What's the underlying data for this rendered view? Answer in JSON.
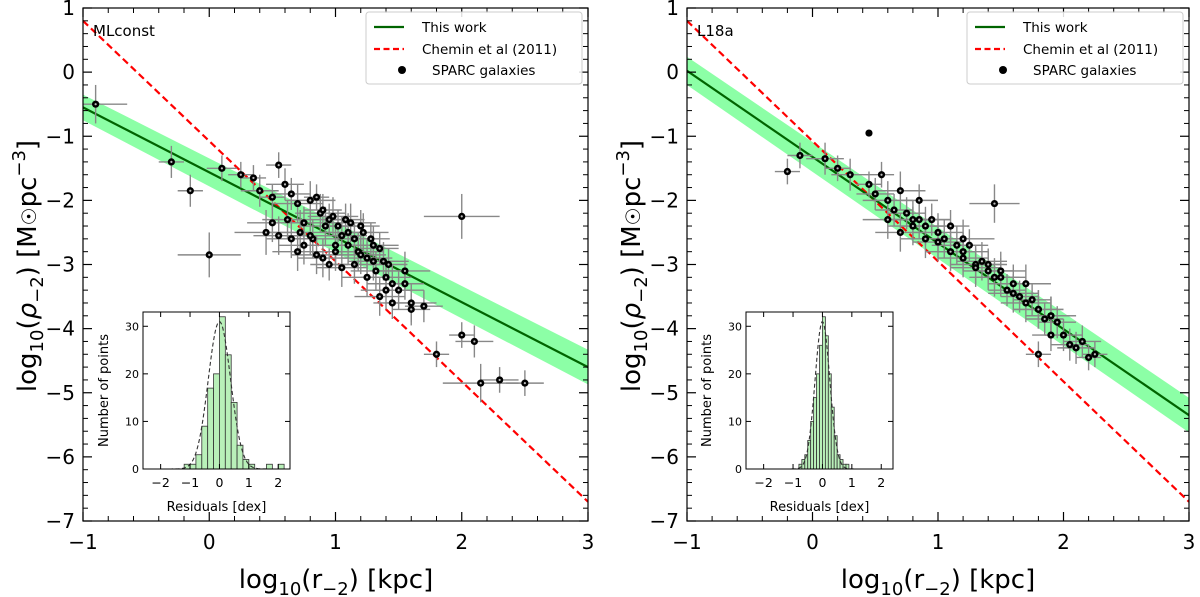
{
  "chart_data": [
    {
      "type": "scatter",
      "panel_label": "MLconst",
      "xlabel": "log10(r−2)  [kpc]",
      "ylabel": "log10(ρ−2)  [M☉pc−3]",
      "xlim": [
        -1,
        3
      ],
      "ylim": [
        -7,
        1
      ],
      "x_ticks": [
        "−1",
        "0",
        "1",
        "2",
        "3"
      ],
      "y_ticks": [
        "1",
        "0",
        "−1",
        "−2",
        "−3",
        "−4",
        "−5",
        "−6",
        "−7"
      ],
      "legend": [
        "This work",
        "Chemin et al (2011)",
        "SPARC galaxies"
      ],
      "legend_position": "top-right",
      "fit_line": {
        "name": "This work",
        "x": [
          -1,
          3
        ],
        "y": [
          -0.55,
          -4.6
        ],
        "band_halfwidth": [
          0.2,
          0.27
        ],
        "color": "#006400"
      },
      "reference_line": {
        "name": "Chemin et al (2011)",
        "x": [
          -1,
          3
        ],
        "y": [
          0.8,
          -6.7
        ],
        "color": "#ff0000"
      },
      "points": {
        "name": "SPARC galaxies",
        "x": [
          -0.9,
          -0.3,
          -0.15,
          0.1,
          0.25,
          0.35,
          0.4,
          0.5,
          0.55,
          0.6,
          0.62,
          0.65,
          0.7,
          0.72,
          0.75,
          0.8,
          0.82,
          0.85,
          0.88,
          0.9,
          0.92,
          0.95,
          0.98,
          1.0,
          1.02,
          1.05,
          1.08,
          1.1,
          1.12,
          1.15,
          1.18,
          1.2,
          1.22,
          1.25,
          1.28,
          1.3,
          1.32,
          1.35,
          1.38,
          1.4,
          1.42,
          1.45,
          1.5,
          1.55,
          1.6,
          0.0,
          0.5,
          0.65,
          0.75,
          0.85,
          0.95,
          1.05,
          1.15,
          1.25,
          1.35,
          1.45,
          1.55,
          1.6,
          1.7,
          1.8,
          2.0,
          2.1,
          2.15,
          2.3,
          2.5,
          0.45,
          0.55,
          0.7,
          0.8,
          0.9,
          1.0,
          1.1,
          1.2,
          1.3,
          1.4,
          2.0
        ],
        "y": [
          -0.5,
          -1.4,
          -1.85,
          -1.5,
          -1.6,
          -1.65,
          -1.85,
          -1.95,
          -1.45,
          -1.75,
          -2.3,
          -1.9,
          -2.05,
          -2.5,
          -2.35,
          -2.0,
          -2.6,
          -1.95,
          -2.2,
          -2.15,
          -2.4,
          -2.3,
          -2.25,
          -2.7,
          -2.4,
          -2.55,
          -2.3,
          -2.5,
          -2.35,
          -2.6,
          -2.8,
          -2.4,
          -2.5,
          -2.9,
          -2.6,
          -2.7,
          -3.1,
          -2.75,
          -2.95,
          -3.2,
          -3.0,
          -3.3,
          -3.4,
          -3.3,
          -3.6,
          -2.85,
          -2.35,
          -2.6,
          -2.7,
          -2.85,
          -3.0,
          -3.05,
          -3.0,
          -3.2,
          -3.5,
          -3.6,
          -3.1,
          -3.7,
          -3.65,
          -4.4,
          -4.1,
          -4.2,
          -4.85,
          -4.8,
          -4.85,
          -2.5,
          -2.55,
          -2.8,
          -2.55,
          -2.9,
          -2.8,
          -2.7,
          -2.85,
          -2.95,
          -3.4,
          -2.25
        ],
        "xerr": [
          0.25,
          0.1,
          0.1,
          0.12,
          0.1,
          0.1,
          0.15,
          0.1,
          0.1,
          0.15,
          0.2,
          0.15,
          0.2,
          0.25,
          0.15,
          0.2,
          0.2,
          0.1,
          0.2,
          0.15,
          0.2,
          0.15,
          0.2,
          0.2,
          0.15,
          0.2,
          0.15,
          0.2,
          0.2,
          0.15,
          0.2,
          0.15,
          0.2,
          0.2,
          0.15,
          0.2,
          0.2,
          0.15,
          0.2,
          0.2,
          0.15,
          0.2,
          0.2,
          0.15,
          0.2,
          0.25,
          0.2,
          0.2,
          0.2,
          0.2,
          0.15,
          0.2,
          0.2,
          0.2,
          0.2,
          0.15,
          0.2,
          0.15,
          0.15,
          0.1,
          0.1,
          0.15,
          0.3,
          0.15,
          0.15,
          0.25,
          0.2,
          0.2,
          0.2,
          0.2,
          0.2,
          0.2,
          0.2,
          0.2,
          0.2,
          0.3
        ],
        "yerr": [
          0.3,
          0.25,
          0.25,
          0.2,
          0.2,
          0.2,
          0.25,
          0.2,
          0.2,
          0.25,
          0.3,
          0.25,
          0.3,
          0.35,
          0.25,
          0.3,
          0.3,
          0.2,
          0.3,
          0.25,
          0.3,
          0.25,
          0.3,
          0.3,
          0.25,
          0.3,
          0.25,
          0.3,
          0.3,
          0.25,
          0.3,
          0.25,
          0.3,
          0.3,
          0.25,
          0.3,
          0.3,
          0.25,
          0.3,
          0.3,
          0.25,
          0.3,
          0.3,
          0.25,
          0.3,
          0.35,
          0.3,
          0.3,
          0.3,
          0.3,
          0.25,
          0.3,
          0.3,
          0.3,
          0.3,
          0.25,
          0.3,
          0.25,
          0.25,
          0.2,
          0.2,
          0.25,
          0.3,
          0.2,
          0.2,
          0.35,
          0.3,
          0.3,
          0.3,
          0.3,
          0.3,
          0.3,
          0.3,
          0.3,
          0.3,
          0.35
        ]
      },
      "inset": {
        "type": "histogram",
        "xlabel": "Residuals [dex]",
        "ylabel": "Number of points",
        "xlim": [
          -2.6,
          2.4
        ],
        "ylim": [
          0,
          33
        ],
        "x_ticks": [
          "−2",
          "−1",
          "0",
          "1",
          "2"
        ],
        "y_ticks": [
          "0",
          "10",
          "20",
          "30"
        ],
        "bin_width": 0.2,
        "bins_left": [
          -1.2,
          -1.0,
          -0.8,
          -0.6,
          -0.4,
          -0.2,
          0.0,
          0.2,
          0.4,
          0.6,
          0.8,
          1.0,
          1.2,
          1.4,
          1.6,
          1.8,
          2.0
        ],
        "counts": [
          1,
          1,
          3,
          9,
          17,
          20,
          32,
          24,
          14,
          5,
          2,
          1,
          0,
          0,
          1,
          0,
          1
        ],
        "gaussian_sigma": 0.38,
        "gaussian_peak": 31
      }
    },
    {
      "type": "scatter",
      "panel_label": "L18a",
      "xlabel": "log10(r−2)  [kpc]",
      "ylabel": "log10(ρ−2)  [M☉pc−3]",
      "xlim": [
        -1,
        3
      ],
      "ylim": [
        -7,
        1
      ],
      "x_ticks": [
        "−1",
        "0",
        "1",
        "2",
        "3"
      ],
      "y_ticks": [
        "1",
        "0",
        "−1",
        "−2",
        "−3",
        "−4",
        "−5",
        "−6",
        "−7"
      ],
      "legend": [
        "This work",
        "Chemin et al (2011)",
        "SPARC galaxies"
      ],
      "legend_position": "top-right",
      "fit_line": {
        "name": "This work",
        "x": [
          -1,
          3
        ],
        "y": [
          0.02,
          -5.35
        ],
        "band_halfwidth": [
          0.22,
          0.27
        ],
        "color": "#006400"
      },
      "reference_line": {
        "name": "Chemin et al (2011)",
        "x": [
          -1,
          3
        ],
        "y": [
          0.8,
          -6.7
        ],
        "color": "#ff0000"
      },
      "points": {
        "name": "SPARC galaxies",
        "x": [
          -0.2,
          -0.1,
          0.1,
          0.2,
          0.3,
          0.45,
          0.5,
          0.55,
          0.6,
          0.65,
          0.7,
          0.75,
          0.8,
          0.85,
          0.9,
          0.95,
          1.0,
          1.05,
          1.1,
          1.15,
          1.2,
          1.25,
          1.3,
          1.35,
          1.4,
          1.45,
          1.5,
          1.55,
          1.6,
          1.65,
          1.7,
          1.75,
          1.8,
          1.85,
          1.9,
          1.95,
          2.0,
          2.05,
          2.1,
          2.15,
          2.2,
          2.25,
          0.6,
          0.7,
          0.8,
          0.9,
          1.0,
          1.1,
          1.2,
          1.3,
          1.4,
          1.5,
          1.6,
          1.7,
          1.8,
          1.9,
          0.85,
          1.2,
          1.45,
          1.8,
          1.9
        ],
        "y": [
          -1.55,
          -1.3,
          -1.35,
          -1.5,
          -1.6,
          -1.75,
          -1.9,
          -1.6,
          -2.0,
          -2.15,
          -1.85,
          -2.2,
          -2.3,
          -2.0,
          -2.4,
          -2.3,
          -2.5,
          -2.6,
          -2.4,
          -2.7,
          -2.8,
          -2.7,
          -3.0,
          -2.95,
          -3.0,
          -3.2,
          -3.1,
          -3.4,
          -3.3,
          -3.5,
          -3.6,
          -3.55,
          -3.7,
          -3.85,
          -3.8,
          -3.9,
          -4.1,
          -4.25,
          -4.3,
          -4.2,
          -4.45,
          -4.4,
          -2.3,
          -2.5,
          -2.4,
          -2.6,
          -2.65,
          -2.8,
          -2.9,
          -3.05,
          -3.1,
          -3.2,
          -3.45,
          -3.3,
          -3.7,
          -3.8,
          -2.3,
          -2.6,
          -2.05,
          -4.4,
          -4.1
        ],
        "xerr": [
          0.1,
          0.1,
          0.15,
          0.1,
          0.15,
          0.1,
          0.15,
          0.1,
          0.2,
          0.15,
          0.2,
          0.15,
          0.2,
          0.15,
          0.2,
          0.15,
          0.2,
          0.2,
          0.15,
          0.2,
          0.2,
          0.15,
          0.2,
          0.2,
          0.15,
          0.2,
          0.2,
          0.15,
          0.2,
          0.15,
          0.2,
          0.15,
          0.2,
          0.15,
          0.2,
          0.15,
          0.15,
          0.15,
          0.15,
          0.15,
          0.1,
          0.1,
          0.2,
          0.2,
          0.2,
          0.2,
          0.2,
          0.2,
          0.2,
          0.2,
          0.2,
          0.2,
          0.2,
          0.2,
          0.2,
          0.2,
          0.25,
          0.25,
          0.2,
          0.1,
          0.15
        ],
        "yerr": [
          0.2,
          0.2,
          0.25,
          0.2,
          0.25,
          0.2,
          0.25,
          0.2,
          0.3,
          0.25,
          0.3,
          0.25,
          0.3,
          0.25,
          0.3,
          0.25,
          0.3,
          0.3,
          0.25,
          0.3,
          0.3,
          0.25,
          0.3,
          0.3,
          0.25,
          0.3,
          0.3,
          0.25,
          0.3,
          0.25,
          0.3,
          0.25,
          0.3,
          0.25,
          0.3,
          0.25,
          0.25,
          0.25,
          0.25,
          0.25,
          0.2,
          0.2,
          0.3,
          0.3,
          0.3,
          0.3,
          0.3,
          0.3,
          0.3,
          0.3,
          0.3,
          0.3,
          0.3,
          0.3,
          0.3,
          0.3,
          0.3,
          0.3,
          0.3,
          0.2,
          0.25
        ]
      },
      "extra_points": {
        "x": [
          0.45
        ],
        "y": [
          -0.95
        ]
      },
      "inset": {
        "type": "histogram",
        "xlabel": "Residuals [dex]",
        "ylabel": "Number of points",
        "xlim": [
          -2.6,
          2.4
        ],
        "ylim": [
          0,
          33
        ],
        "x_ticks": [
          "−2",
          "−1",
          "0",
          "1",
          "2"
        ],
        "y_ticks": [
          "0",
          "10",
          "20",
          "30"
        ],
        "bin_width": 0.1,
        "bins_left": [
          -0.8,
          -0.7,
          -0.6,
          -0.5,
          -0.4,
          -0.3,
          -0.2,
          -0.1,
          0.0,
          0.1,
          0.2,
          0.3,
          0.4,
          0.5,
          0.6,
          0.7,
          0.8
        ],
        "counts": [
          1,
          2,
          3,
          6,
          10,
          15,
          20,
          26,
          32,
          28,
          20,
          13,
          7,
          3,
          2,
          1,
          1
        ],
        "gaussian_sigma": 0.25,
        "gaussian_peak": 31
      }
    }
  ]
}
